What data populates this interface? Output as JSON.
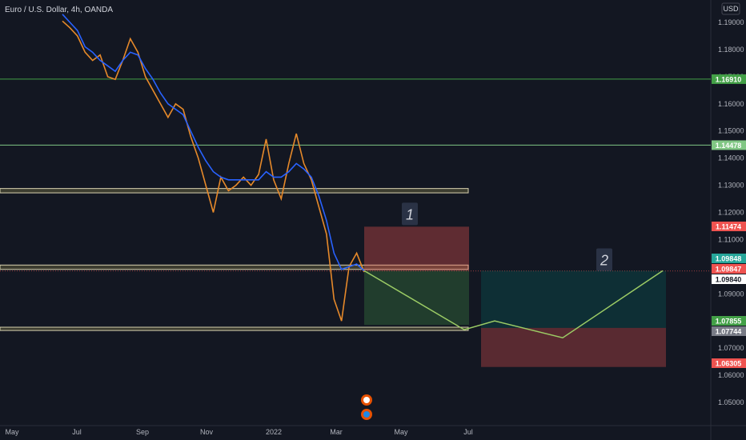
{
  "header": {
    "symbol_title": "Euro / U.S. Dollar, 4h, OANDA",
    "currency_label": "USD"
  },
  "chart_data": {
    "type": "line",
    "xlabel": "",
    "ylabel": "",
    "ylim": [
      1.045,
      1.195
    ],
    "x_tick_labels": [
      "May",
      "Jul",
      "Sep",
      "Nov",
      "2022",
      "Mar",
      "May",
      "Jul"
    ],
    "y_tick_labels": [
      "1.19000",
      "1.18000",
      "1.17000",
      "1.16000",
      "1.15000",
      "1.14000",
      "1.13000",
      "1.12000",
      "1.11000",
      "1.10000",
      "1.09000",
      "1.08000",
      "1.07000",
      "1.06000",
      "1.05000"
    ],
    "y_ticks": [
      1.19,
      1.18,
      1.17,
      1.16,
      1.15,
      1.14,
      1.13,
      1.12,
      1.11,
      1.1,
      1.09,
      1.08,
      1.07,
      1.06,
      1.05
    ],
    "series": [
      {
        "values": [
          1.1905,
          1.188,
          1.185,
          1.179,
          1.176,
          1.178,
          1.17,
          1.169,
          1.176,
          1.184,
          1.179,
          1.17,
          1.165,
          1.16,
          1.155,
          1.16,
          1.158,
          1.148,
          1.14,
          1.13,
          1.12,
          1.133,
          1.128,
          1.13,
          1.133,
          1.13,
          1.134,
          1.147,
          1.132,
          1.125,
          1.138,
          1.149,
          1.138,
          1.132,
          1.122,
          1.112,
          1.088,
          1.08,
          1.1,
          1.105,
          1.098
        ],
        "color": "#e6892a"
      },
      {
        "values": [
          1.193,
          1.19,
          1.187,
          1.181,
          1.179,
          1.176,
          1.174,
          1.172,
          1.176,
          1.179,
          1.178,
          1.173,
          1.169,
          1.164,
          1.16,
          1.158,
          1.156,
          1.15,
          1.144,
          1.139,
          1.135,
          1.133,
          1.132,
          1.132,
          1.132,
          1.132,
          1.132,
          1.135,
          1.133,
          1.133,
          1.135,
          1.138,
          1.136,
          1.133,
          1.126,
          1.117,
          1.105,
          1.099,
          1.1,
          1.101,
          1.0985
        ],
        "color": "#2962ff"
      }
    ],
    "horizontal_lines": [
      {
        "value": 1.1691,
        "label": "1.16910",
        "color": "#43a047"
      },
      {
        "value": 1.14478,
        "label": "1.14478",
        "color": "#81c784"
      }
    ],
    "zones": [
      {
        "top": 1.1288,
        "bottom": 1.1272
      },
      {
        "top": 1.1006,
        "bottom": 1.099
      },
      {
        "top": 1.0777,
        "bottom": 1.0765
      }
    ],
    "positions": [
      {
        "number": "1",
        "entry": 1.0985,
        "stop": 1.11474,
        "target": 1.07855
      },
      {
        "number": "2",
        "entry": 1.0985,
        "stop": 1.06305,
        "target": 1.07744
      }
    ],
    "projection_path": [
      1.0985,
      1.0768,
      1.08,
      1.0738,
      1.0985
    ],
    "price_badges": [
      {
        "value": 1.11474,
        "label": "1.11474",
        "bg": "#ef5350",
        "fg": "#ffffff"
      },
      {
        "value": 1.09848,
        "label": "1.09848",
        "bg": "#26a69a",
        "fg": "#ffffff"
      },
      {
        "value": 1.09847,
        "label": "1.09847",
        "bg": "#ef5350",
        "fg": "#ffffff"
      },
      {
        "value": 1.0984,
        "label": "1.09840",
        "bg": "#ffffff",
        "fg": "#131722"
      },
      {
        "value": 1.07855,
        "label": "1.07855",
        "bg": "#43a047",
        "fg": "#ffffff"
      },
      {
        "value": 1.07744,
        "label": "1.07744",
        "bg": "#787b86",
        "fg": "#ffffff"
      },
      {
        "value": 1.06305,
        "label": "1.06305",
        "bg": "#ef5350",
        "fg": "#ffffff"
      }
    ],
    "grid": false
  }
}
